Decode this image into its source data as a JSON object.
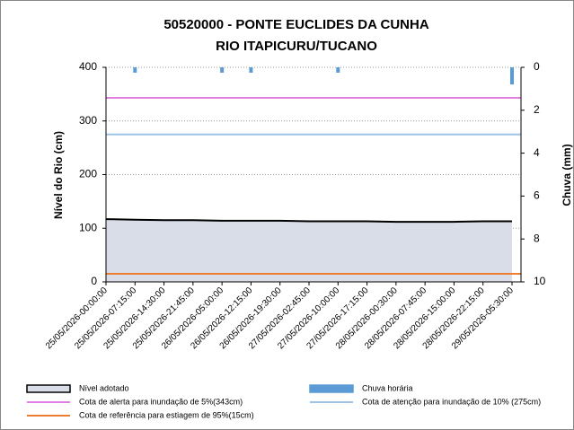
{
  "chart_data": {
    "type": "area",
    "title": "50520000 - PONTE EUCLIDES DA CUNHA",
    "subtitle": "RIO ITAPICURU/TUCANO",
    "ylabel": "Nível do Rio (cm)",
    "y2label": "Chuva (mm)",
    "categories": [
      "25/05/2026-00:00:00",
      "25/05/2026-07:15:00",
      "25/05/2026-14:30:00",
      "25/05/2026-21:45:00",
      "26/05/2026-05:00:00",
      "26/05/2026-12:15:00",
      "26/05/2026-19:30:00",
      "27/05/2026-02:45:00",
      "27/05/2026-10:00:00",
      "27/05/2026-17:15:00",
      "28/05/2026-00:30:00",
      "28/05/2026-07:45:00",
      "28/05/2026-15:00:00",
      "28/05/2026-22:15:00",
      "29/05/2026-05:30:00"
    ],
    "ylim": [
      0,
      400
    ],
    "yticks": [
      0,
      100,
      200,
      300,
      400
    ],
    "y2lim": [
      0,
      10
    ],
    "y2ticks": [
      0,
      2,
      4,
      6,
      8,
      10
    ],
    "y2_inverted": true,
    "grid": true,
    "series": [
      {
        "name": "Nível adotado",
        "color": "#d9dde8",
        "edge_color": "#000000",
        "values": [
          117,
          116,
          115,
          115,
          114,
          114,
          114,
          113,
          113,
          113,
          112,
          112,
          112,
          113,
          113
        ]
      },
      {
        "name": "Chuva horária",
        "color": "#5b9bd5",
        "axis": "y2",
        "kind": "bar",
        "values": [
          null,
          0.25,
          null,
          null,
          0.25,
          0.25,
          null,
          null,
          0.25,
          null,
          null,
          null,
          null,
          null,
          0.8
        ]
      }
    ],
    "reference_lines": [
      {
        "name": "Cota de alerta para inundação de 5%(343cm)",
        "value": 343,
        "color": "#e37ee3"
      },
      {
        "name": "Cota de atenção para inundação de 10% (275cm)",
        "value": 275,
        "color": "#9dc3e6"
      },
      {
        "name": "Cota de referência para estiagem de 95%(15cm)",
        "value": 15,
        "color": "#ed7d31"
      }
    ]
  }
}
